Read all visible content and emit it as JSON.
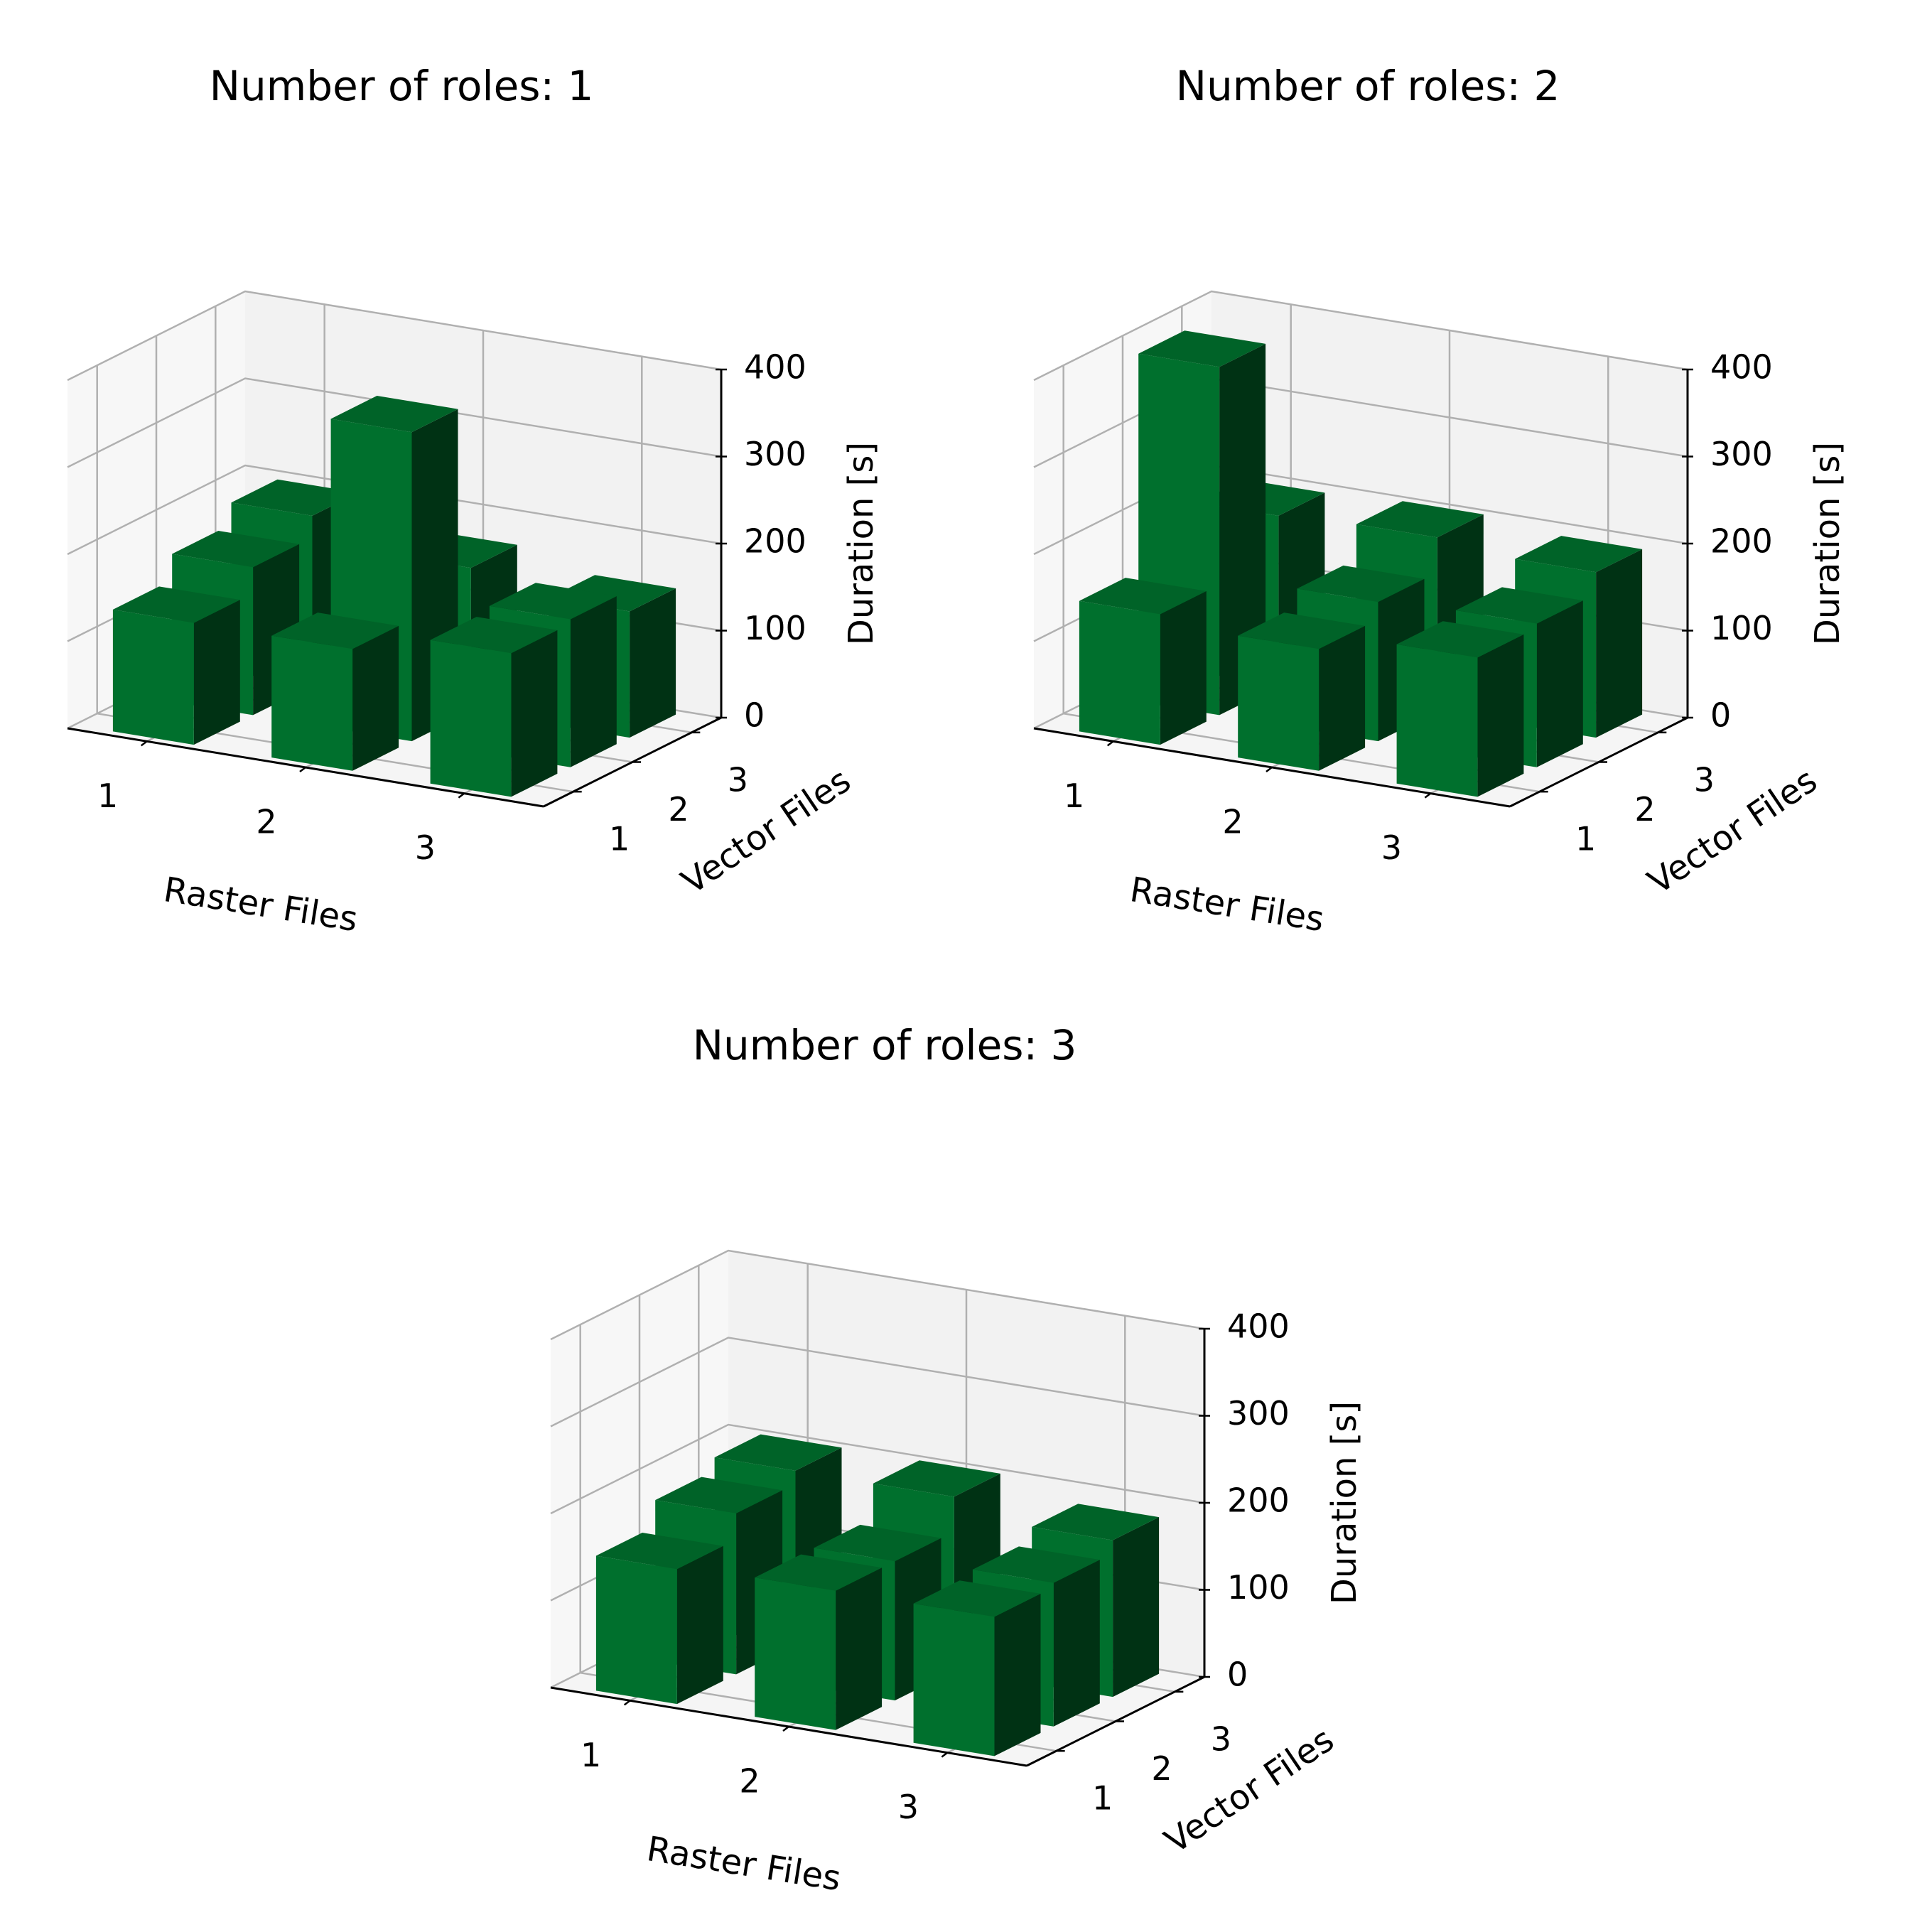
{
  "chart_data": [
    {
      "type": "bar3d",
      "title": "Number of roles: 1",
      "xlabel": "Raster Files",
      "ylabel": "Vector Files",
      "zlabel": "Duration [s]",
      "x_categories": [
        "1",
        "2",
        "3"
      ],
      "y_categories": [
        "1",
        "2",
        "3"
      ],
      "zticks": [
        "0",
        "100",
        "200",
        "300",
        "400"
      ],
      "zlim": [
        0,
        400
      ],
      "bar_color": "#00702d",
      "bars": [
        {
          "x": 1,
          "y": 1,
          "value": 140
        },
        {
          "x": 1,
          "y": 2,
          "value": 170
        },
        {
          "x": 1,
          "y": 3,
          "value": 195
        },
        {
          "x": 2,
          "y": 1,
          "value": 140
        },
        {
          "x": 2,
          "y": 2,
          "value": 355
        },
        {
          "x": 2,
          "y": 3,
          "value": 165
        },
        {
          "x": 3,
          "y": 1,
          "value": 165
        },
        {
          "x": 3,
          "y": 2,
          "value": 170
        },
        {
          "x": 3,
          "y": 3,
          "value": 145
        }
      ]
    },
    {
      "type": "bar3d",
      "title": "Number of roles: 2",
      "xlabel": "Raster Files",
      "ylabel": "Vector Files",
      "zlabel": "Duration [s]",
      "x_categories": [
        "1",
        "2",
        "3"
      ],
      "y_categories": [
        "1",
        "2",
        "3"
      ],
      "zticks": [
        "0",
        "100",
        "200",
        "300",
        "400"
      ],
      "zlim": [
        0,
        400
      ],
      "bar_color": "#00702d",
      "bars": [
        {
          "x": 1,
          "y": 1,
          "value": 150
        },
        {
          "x": 1,
          "y": 2,
          "value": 400
        },
        {
          "x": 1,
          "y": 3,
          "value": 195
        },
        {
          "x": 2,
          "y": 1,
          "value": 140
        },
        {
          "x": 2,
          "y": 2,
          "value": 160
        },
        {
          "x": 2,
          "y": 3,
          "value": 200
        },
        {
          "x": 3,
          "y": 1,
          "value": 160
        },
        {
          "x": 3,
          "y": 2,
          "value": 165
        },
        {
          "x": 3,
          "y": 3,
          "value": 190
        }
      ]
    },
    {
      "type": "bar3d",
      "title": "Number of roles: 3",
      "xlabel": "Raster Files",
      "ylabel": "Vector Files",
      "zlabel": "Duration [s]",
      "x_categories": [
        "1",
        "2",
        "3"
      ],
      "y_categories": [
        "1",
        "2",
        "3"
      ],
      "zticks": [
        "0",
        "100",
        "200",
        "300",
        "400"
      ],
      "zlim": [
        0,
        400
      ],
      "bar_color": "#00702d",
      "bars": [
        {
          "x": 1,
          "y": 1,
          "value": 155
        },
        {
          "x": 1,
          "y": 2,
          "value": 185
        },
        {
          "x": 1,
          "y": 3,
          "value": 200
        },
        {
          "x": 2,
          "y": 1,
          "value": 160
        },
        {
          "x": 2,
          "y": 2,
          "value": 160
        },
        {
          "x": 2,
          "y": 3,
          "value": 200
        },
        {
          "x": 3,
          "y": 1,
          "value": 160
        },
        {
          "x": 3,
          "y": 2,
          "value": 165
        },
        {
          "x": 3,
          "y": 3,
          "value": 180
        }
      ]
    }
  ]
}
